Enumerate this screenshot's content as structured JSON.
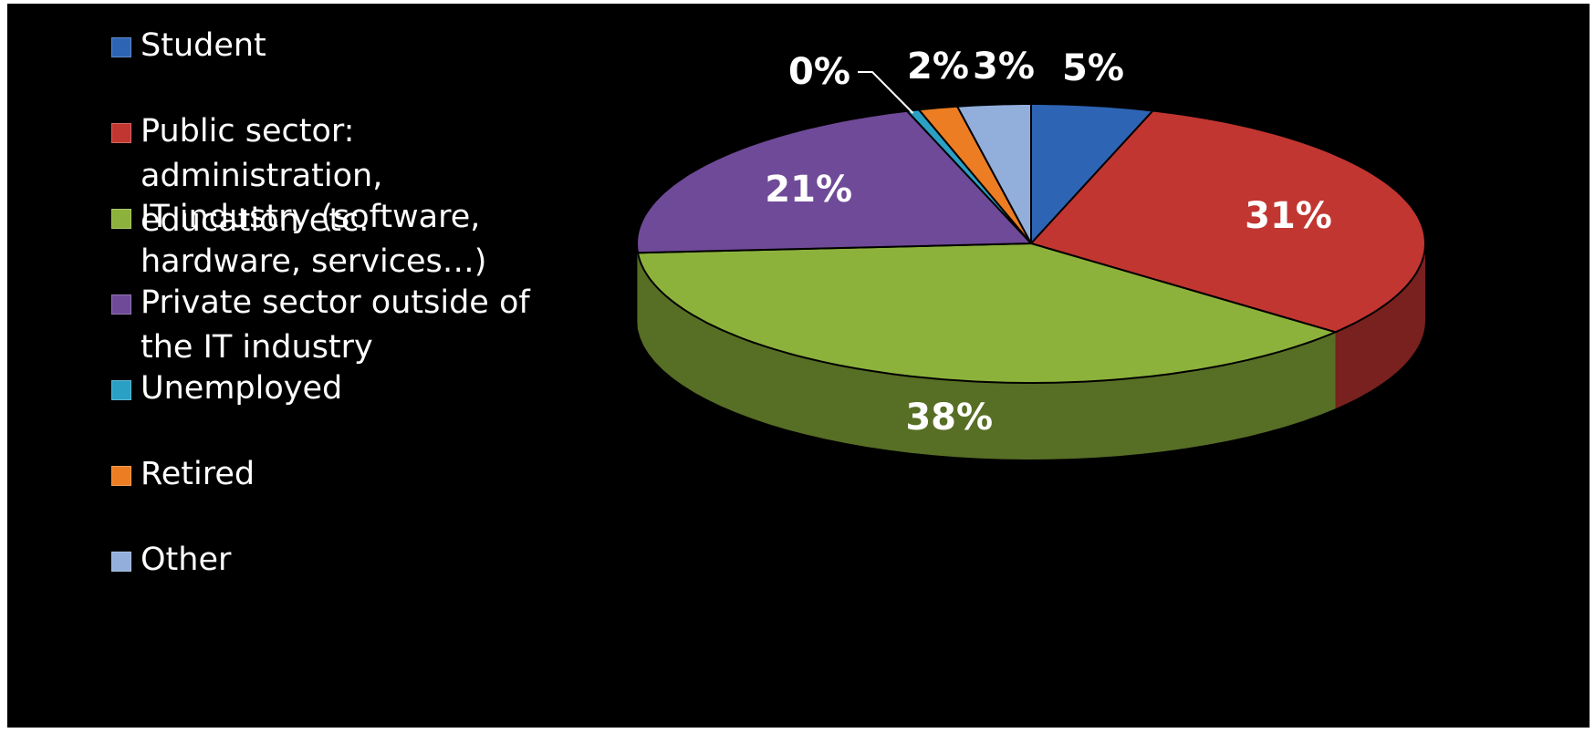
{
  "chart_data": {
    "type": "pie",
    "style": "3d",
    "title": "",
    "legend_position": "left",
    "slices": [
      {
        "label": "Student",
        "value": 5,
        "value_label": "5%",
        "color": "#2e64b4"
      },
      {
        "label": "Public sector: administration, education etc.",
        "value": 31,
        "value_label": "31%",
        "color": "#c23631"
      },
      {
        "label": "IT industry (software, hardware, services…)",
        "value": 38,
        "value_label": "38%",
        "color": "#8db23c"
      },
      {
        "label": "Private sector outside of the IT industry",
        "value": 21,
        "value_label": "21%",
        "color": "#6f4a98"
      },
      {
        "label": "Unemployed",
        "value": 0.5,
        "value_label": "0%",
        "color": "#2aa0c4"
      },
      {
        "label": "Retired",
        "value": 1.6,
        "value_label": "2%",
        "color": "#ec7d22"
      },
      {
        "label": "Other",
        "value": 3,
        "value_label": "3%",
        "color": "#92aedb"
      }
    ]
  }
}
